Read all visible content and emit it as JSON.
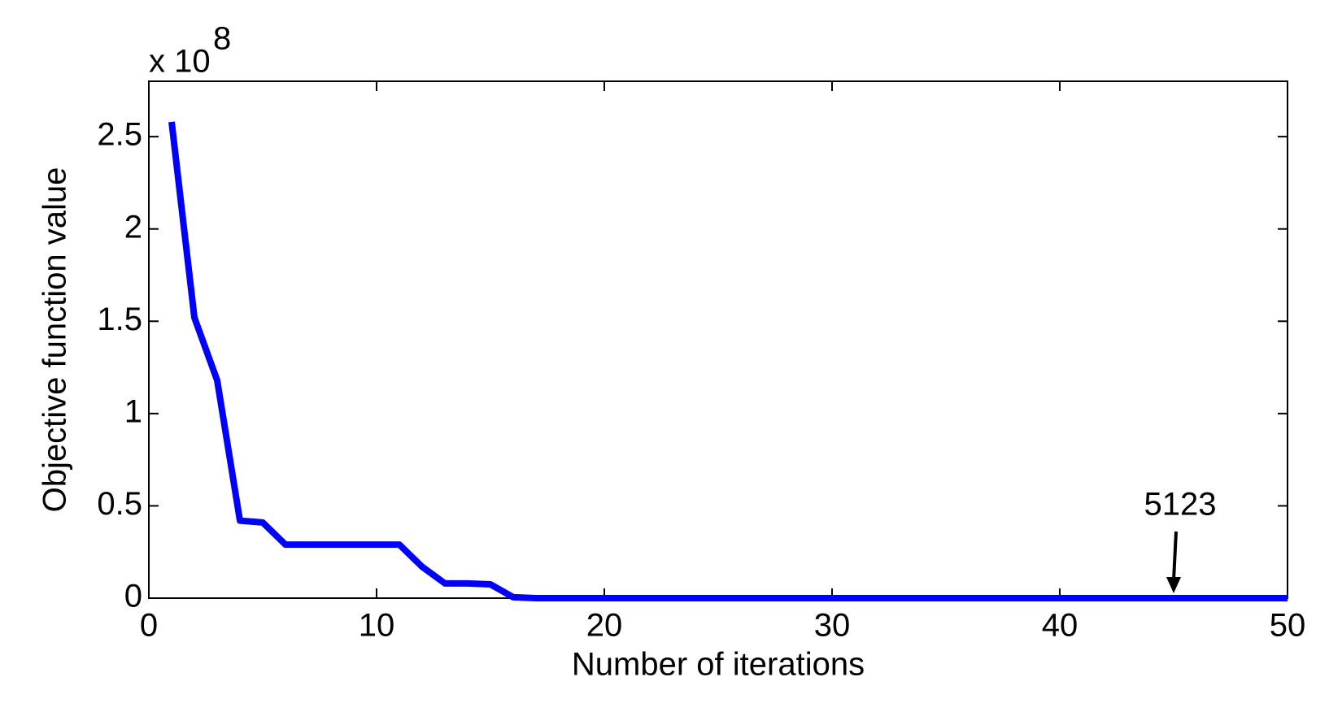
{
  "chart_data": {
    "type": "line",
    "xlabel": "Number of iterations",
    "ylabel": "Objective function value",
    "y_multiplier_base": "x 10",
    "y_multiplier_exponent": "8",
    "x": [
      1,
      2,
      3,
      4,
      5,
      6,
      7,
      8,
      9,
      10,
      11,
      12,
      13,
      14,
      15,
      16,
      17,
      18,
      19,
      20,
      21,
      22,
      23,
      24,
      25,
      26,
      27,
      28,
      29,
      30,
      31,
      32,
      33,
      34,
      35,
      36,
      37,
      38,
      39,
      40,
      41,
      42,
      43,
      44,
      45,
      46,
      47,
      48,
      49,
      50
    ],
    "series": [
      {
        "color": "#0000ff",
        "values": [
          2.58,
          1.52,
          1.18,
          0.42,
          0.41,
          0.29,
          0.29,
          0.29,
          0.29,
          0.29,
          0.29,
          0.17,
          0.08,
          0.08,
          0.075,
          0.005,
          5.123e-05,
          5.123e-05,
          5.123e-05,
          5.123e-05,
          5.123e-05,
          5.123e-05,
          5.123e-05,
          5.123e-05,
          5.123e-05,
          5.123e-05,
          5.123e-05,
          5.123e-05,
          5.123e-05,
          5.123e-05,
          5.123e-05,
          5.123e-05,
          5.123e-05,
          5.123e-05,
          5.123e-05,
          5.123e-05,
          5.123e-05,
          5.123e-05,
          5.123e-05,
          5.123e-05,
          5.123e-05,
          5.123e-05,
          5.123e-05,
          5.123e-05,
          5.123e-05,
          5.123e-05,
          5.123e-05,
          5.123e-05,
          5.123e-05,
          5.123e-05
        ]
      }
    ],
    "annotation": {
      "text": "5123",
      "x": 45,
      "y": 5.123e-05
    },
    "xlim": [
      0,
      50
    ],
    "xticks": [
      0,
      10,
      20,
      30,
      40,
      50
    ],
    "ylim": [
      0,
      2.8
    ],
    "yticks": [
      0,
      0.5,
      1,
      1.5,
      2,
      2.5
    ],
    "grid": false
  }
}
